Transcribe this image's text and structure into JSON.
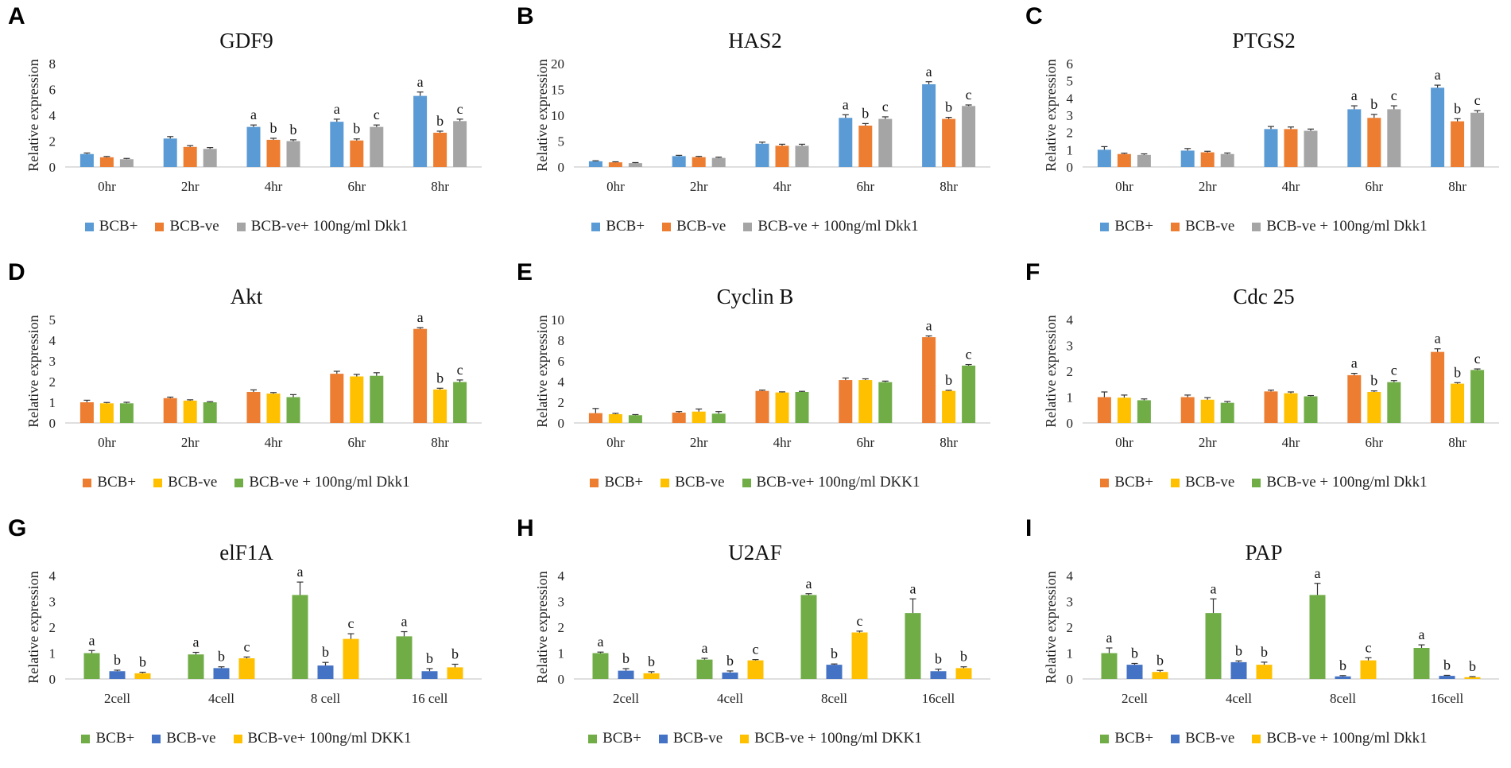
{
  "chart_data": [
    {
      "id": "A",
      "type": "bar",
      "letter": "A",
      "title": "GDF9",
      "ylabel": "Relative expression",
      "xlabel": "",
      "ylim": [
        0,
        8
      ],
      "yticks": [
        0,
        2,
        4,
        6,
        8
      ],
      "categories": [
        "0hr",
        "2hr",
        "4hr",
        "6hr",
        "8hr"
      ],
      "series": [
        {
          "name": "BCB+",
          "color": "#5B9BD5",
          "values": [
            1.0,
            2.2,
            3.1,
            3.5,
            5.5
          ],
          "errors": [
            0.08,
            0.15,
            0.15,
            0.2,
            0.3
          ],
          "letters": [
            "",
            "",
            "a",
            "a",
            "a"
          ]
        },
        {
          "name": "BCB-ve",
          "color": "#ED7D31",
          "values": [
            0.75,
            1.55,
            2.1,
            2.05,
            2.65
          ],
          "errors": [
            0.06,
            0.1,
            0.12,
            0.12,
            0.12
          ],
          "letters": [
            "",
            "",
            "b",
            "b",
            "b"
          ]
        },
        {
          "name": "BCB-ve+ 100ng/ml Dkk1",
          "color": "#A5A5A5",
          "values": [
            0.6,
            1.4,
            2.0,
            3.1,
            3.55
          ],
          "errors": [
            0.06,
            0.1,
            0.1,
            0.15,
            0.15
          ],
          "letters": [
            "",
            "",
            "b",
            "c",
            "c"
          ]
        }
      ]
    },
    {
      "id": "B",
      "type": "bar",
      "letter": "B",
      "title": "HAS2",
      "ylabel": "Relative expression",
      "xlabel": "",
      "ylim": [
        0,
        20
      ],
      "yticks": [
        0,
        5,
        10,
        15,
        20
      ],
      "categories": [
        "0hr",
        "2hr",
        "4hr",
        "6hr",
        "8hr"
      ],
      "series": [
        {
          "name": "BCB+",
          "color": "#5B9BD5",
          "values": [
            1.1,
            2.1,
            4.5,
            9.5,
            16.0
          ],
          "errors": [
            0.1,
            0.15,
            0.3,
            0.6,
            0.5
          ],
          "letters": [
            "",
            "",
            "",
            "a",
            "a"
          ]
        },
        {
          "name": "BCB-ve",
          "color": "#ED7D31",
          "values": [
            0.9,
            1.9,
            4.1,
            8.0,
            9.3
          ],
          "errors": [
            0.1,
            0.15,
            0.3,
            0.4,
            0.3
          ],
          "letters": [
            "",
            "",
            "",
            "b",
            "b"
          ]
        },
        {
          "name": "BCB-ve + 100ng/ml Dkk1",
          "color": "#A5A5A5",
          "values": [
            0.75,
            1.75,
            4.1,
            9.3,
            11.8
          ],
          "errors": [
            0.1,
            0.15,
            0.3,
            0.4,
            0.2
          ],
          "letters": [
            "",
            "",
            "",
            "c",
            "c"
          ]
        }
      ]
    },
    {
      "id": "C",
      "type": "bar",
      "letter": "C",
      "title": "PTGS2",
      "ylabel": "Relative expression",
      "xlabel": "",
      "ylim": [
        0,
        6
      ],
      "yticks": [
        0,
        1,
        2,
        3,
        4,
        5,
        6
      ],
      "categories": [
        "0hr",
        "2hr",
        "4hr",
        "6hr",
        "8hr"
      ],
      "series": [
        {
          "name": "BCB+",
          "color": "#5B9BD5",
          "values": [
            1.0,
            0.95,
            2.2,
            3.35,
            4.6
          ],
          "errors": [
            0.18,
            0.12,
            0.15,
            0.2,
            0.15
          ],
          "letters": [
            "",
            "",
            "",
            "a",
            "a"
          ]
        },
        {
          "name": "BCB-ve",
          "color": "#ED7D31",
          "values": [
            0.75,
            0.85,
            2.2,
            2.85,
            2.65
          ],
          "errors": [
            0.05,
            0.06,
            0.12,
            0.2,
            0.15
          ],
          "letters": [
            "",
            "",
            "",
            "b",
            "b"
          ]
        },
        {
          "name": "BCB-ve + 100ng/ml Dkk1",
          "color": "#A5A5A5",
          "values": [
            0.7,
            0.75,
            2.1,
            3.35,
            3.15
          ],
          "errors": [
            0.06,
            0.06,
            0.1,
            0.2,
            0.12
          ],
          "letters": [
            "",
            "",
            "",
            "c",
            "c"
          ]
        }
      ]
    },
    {
      "id": "D",
      "type": "bar",
      "letter": "D",
      "title": "Akt",
      "ylabel": "Relative expression",
      "xlabel": "",
      "ylim": [
        0,
        5
      ],
      "yticks": [
        0,
        1,
        2,
        3,
        4,
        5
      ],
      "categories": [
        "0hr",
        "2hr",
        "4hr",
        "6hr",
        "8hr"
      ],
      "series": [
        {
          "name": "BCB+",
          "color": "#ED7D31",
          "values": [
            1.0,
            1.2,
            1.5,
            2.38,
            4.55
          ],
          "errors": [
            0.1,
            0.05,
            0.1,
            0.12,
            0.06
          ],
          "letters": [
            "",
            "",
            "",
            "",
            "a"
          ]
        },
        {
          "name": "BCB-ve",
          "color": "#FFC000",
          "values": [
            0.95,
            1.08,
            1.42,
            2.25,
            1.62
          ],
          "errors": [
            0.04,
            0.04,
            0.05,
            0.1,
            0.06
          ],
          "letters": [
            "",
            "",
            "",
            "",
            "b"
          ]
        },
        {
          "name": "BCB-ve + 100ng/ml Dkk1",
          "color": "#70AD47",
          "values": [
            0.95,
            1.0,
            1.25,
            2.28,
            1.98
          ],
          "errors": [
            0.05,
            0.03,
            0.12,
            0.15,
            0.1
          ],
          "letters": [
            "",
            "",
            "",
            "",
            "c"
          ]
        }
      ]
    },
    {
      "id": "E",
      "type": "bar",
      "letter": "E",
      "title": "Cyclin B",
      "ylabel": "Relative expression",
      "xlabel": "",
      "ylim": [
        0,
        10
      ],
      "yticks": [
        0,
        2,
        4,
        6,
        8,
        10
      ],
      "categories": [
        "0hr",
        "2hr",
        "4hr",
        "6hr",
        "8hr"
      ],
      "series": [
        {
          "name": "BCB+",
          "color": "#ED7D31",
          "values": [
            0.95,
            1.0,
            3.1,
            4.15,
            8.3
          ],
          "errors": [
            0.45,
            0.1,
            0.08,
            0.2,
            0.12
          ],
          "letters": [
            "",
            "",
            "",
            "",
            "a"
          ]
        },
        {
          "name": "BCB-ve",
          "color": "#FFC000",
          "values": [
            0.85,
            1.1,
            2.95,
            4.15,
            3.1
          ],
          "errors": [
            0.08,
            0.25,
            0.06,
            0.12,
            0.06
          ],
          "letters": [
            "",
            "",
            "",
            "",
            "b"
          ]
        },
        {
          "name": "BCB-ve+ 100ng/ml DKK1",
          "color": "#70AD47",
          "values": [
            0.75,
            0.9,
            3.0,
            3.95,
            5.55
          ],
          "errors": [
            0.06,
            0.2,
            0.06,
            0.1,
            0.1
          ],
          "letters": [
            "",
            "",
            "",
            "",
            "c"
          ]
        }
      ]
    },
    {
      "id": "F",
      "type": "bar",
      "letter": "F",
      "title": "Cdc 25",
      "ylabel": "Relative expression",
      "xlabel": "",
      "ylim": [
        0,
        4
      ],
      "yticks": [
        0,
        1,
        2,
        3,
        4
      ],
      "categories": [
        "0hr",
        "2hr",
        "4hr",
        "6hr",
        "8hr"
      ],
      "series": [
        {
          "name": "BCB+",
          "color": "#ED7D31",
          "values": [
            1.0,
            1.0,
            1.22,
            1.85,
            2.75
          ],
          "errors": [
            0.2,
            0.08,
            0.05,
            0.07,
            0.12
          ],
          "letters": [
            "",
            "",
            "",
            "a",
            "a"
          ]
        },
        {
          "name": "BCB-ve",
          "color": "#FFC000",
          "values": [
            0.98,
            0.9,
            1.15,
            1.2,
            1.52
          ],
          "errors": [
            0.1,
            0.08,
            0.05,
            0.04,
            0.04
          ],
          "letters": [
            "",
            "",
            "",
            "b",
            "b"
          ]
        },
        {
          "name": "BCB-ve + 100ng/ml Dkk1",
          "color": "#70AD47",
          "values": [
            0.88,
            0.78,
            1.03,
            1.58,
            2.05
          ],
          "errors": [
            0.05,
            0.05,
            0.03,
            0.06,
            0.04
          ],
          "letters": [
            "",
            "",
            "",
            "c",
            "c"
          ]
        }
      ]
    },
    {
      "id": "G",
      "type": "bar",
      "letter": "G",
      "title": "elF1A",
      "ylabel": "Relative expression",
      "xlabel": "",
      "ylim": [
        0,
        4
      ],
      "yticks": [
        0,
        1,
        2,
        3,
        4
      ],
      "categories": [
        "2cell",
        "4cell",
        "8 cell",
        "16 cell"
      ],
      "series": [
        {
          "name": "BCB+",
          "color": "#70AD47",
          "values": [
            1.0,
            0.95,
            3.25,
            1.65
          ],
          "errors": [
            0.1,
            0.08,
            0.5,
            0.18
          ],
          "letters": [
            "a",
            "a",
            "a",
            "a"
          ]
        },
        {
          "name": "BCB-ve",
          "color": "#4472C4",
          "values": [
            0.3,
            0.42,
            0.52,
            0.3
          ],
          "errors": [
            0.04,
            0.05,
            0.12,
            0.1
          ],
          "letters": [
            "b",
            "b",
            "b",
            "b"
          ]
        },
        {
          "name": "BCB-ve+ 100ng/ml DKK1",
          "color": "#FFC000",
          "values": [
            0.22,
            0.8,
            1.55,
            0.45
          ],
          "errors": [
            0.04,
            0.05,
            0.2,
            0.12
          ],
          "letters": [
            "b",
            "c",
            "c",
            "b"
          ]
        }
      ]
    },
    {
      "id": "H",
      "type": "bar",
      "letter": "H",
      "title": "U2AF",
      "ylabel": "Relative expression",
      "xlabel": "",
      "ylim": [
        0,
        4
      ],
      "yticks": [
        0,
        1,
        2,
        3,
        4
      ],
      "categories": [
        "2cell",
        "4cell",
        "8cell",
        "16cell"
      ],
      "series": [
        {
          "name": "BCB+",
          "color": "#70AD47",
          "values": [
            1.0,
            0.75,
            3.25,
            2.55
          ],
          "errors": [
            0.04,
            0.05,
            0.05,
            0.55
          ],
          "letters": [
            "a",
            "a",
            "a",
            "a"
          ]
        },
        {
          "name": "BCB-ve",
          "color": "#4472C4",
          "values": [
            0.32,
            0.25,
            0.55,
            0.3
          ],
          "errors": [
            0.08,
            0.06,
            0.03,
            0.08
          ],
          "letters": [
            "b",
            "b",
            "b",
            "b"
          ]
        },
        {
          "name": "BCB-ve + 100ng/ml DKK1",
          "color": "#FFC000",
          "values": [
            0.22,
            0.72,
            1.8,
            0.42
          ],
          "errors": [
            0.06,
            0.03,
            0.05,
            0.05
          ],
          "letters": [
            "b",
            "c",
            "c",
            "b"
          ]
        }
      ]
    },
    {
      "id": "I",
      "type": "bar",
      "letter": "I",
      "title": "PAP",
      "ylabel": "Relative expression",
      "xlabel": "",
      "ylim": [
        0,
        4
      ],
      "yticks": [
        0,
        1,
        2,
        3,
        4
      ],
      "categories": [
        "2cell",
        "4cell",
        "8cell",
        "16cell"
      ],
      "series": [
        {
          "name": "BCB+",
          "color": "#70AD47",
          "values": [
            1.0,
            2.55,
            3.25,
            1.2
          ],
          "errors": [
            0.2,
            0.55,
            0.45,
            0.12
          ],
          "letters": [
            "a",
            "a",
            "a",
            "a"
          ]
        },
        {
          "name": "BCB-ve",
          "color": "#4472C4",
          "values": [
            0.55,
            0.65,
            0.1,
            0.12
          ],
          "errors": [
            0.05,
            0.05,
            0.03,
            0.02
          ],
          "letters": [
            "b",
            "b",
            "b",
            "b"
          ]
        },
        {
          "name": "BCB-ve + 100ng/ml Dkk1",
          "color": "#FFC000",
          "values": [
            0.27,
            0.55,
            0.72,
            0.07
          ],
          "errors": [
            0.06,
            0.1,
            0.1,
            0.02
          ],
          "letters": [
            "b",
            "b",
            "c",
            "b"
          ]
        }
      ]
    }
  ]
}
